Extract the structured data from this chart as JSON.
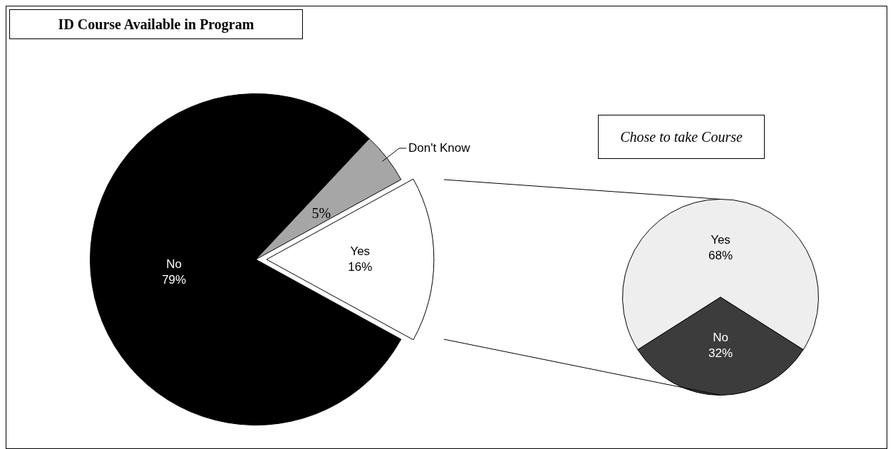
{
  "chart_data": [
    {
      "type": "pie",
      "title": "ID Course Available in Program",
      "categories": [
        "No",
        "Don't Know",
        "Yes"
      ],
      "values": [
        79,
        5,
        16
      ],
      "value_labels": [
        "79%",
        "5%",
        "16%"
      ],
      "colors": [
        "#000000",
        "#a6a6a6",
        "#ffffff"
      ]
    },
    {
      "type": "pie",
      "title": "Chose to take Course",
      "categories": [
        "Yes",
        "No"
      ],
      "values": [
        68,
        32
      ],
      "value_labels": [
        "68%",
        "32%"
      ],
      "colors": [
        "#eeeeee",
        "#3c3c3c"
      ]
    }
  ]
}
